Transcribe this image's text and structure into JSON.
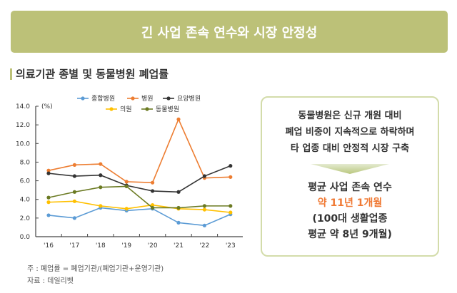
{
  "banner": {
    "title": "긴 사업 존속 연수와 시장 안정성"
  },
  "section": {
    "title": "의료기관 종별 및 동물병원 폐업률"
  },
  "chart_data": {
    "type": "line",
    "ylabel": "(%)",
    "categories": [
      "'16",
      "'17",
      "'18",
      "'19",
      "'20",
      "'21",
      "'22",
      "'23"
    ],
    "ylim": [
      0,
      14
    ],
    "yticks": [
      "0.0",
      "2.0",
      "4.0",
      "6.0",
      "8.0",
      "10.0",
      "12.0",
      "14.0"
    ],
    "legend_position": "top",
    "grid": false,
    "series": [
      {
        "name": "종합병원",
        "color": "#5b9bd5",
        "values": [
          2.3,
          2.0,
          3.1,
          2.8,
          3.0,
          1.5,
          1.2,
          2.4
        ]
      },
      {
        "name": "병원",
        "color": "#ed7d31",
        "values": [
          7.1,
          7.7,
          7.8,
          5.9,
          5.8,
          12.6,
          6.3,
          6.4
        ]
      },
      {
        "name": "요양병원",
        "color": "#333333",
        "values": [
          6.8,
          6.5,
          6.6,
          5.5,
          4.9,
          4.8,
          6.5,
          7.6
        ]
      },
      {
        "name": "의원",
        "color": "#ffc000",
        "values": [
          3.7,
          3.8,
          3.3,
          3.0,
          3.4,
          3.0,
          2.9,
          2.6
        ]
      },
      {
        "name": "동물병원",
        "color": "#6b7a22",
        "values": [
          4.2,
          4.8,
          5.3,
          5.4,
          3.1,
          3.1,
          3.3,
          3.3
        ]
      }
    ]
  },
  "box": {
    "lines": [
      "동물병원은 신규 개원 대비",
      "폐업 비중이 지속적으로 하락하며",
      "타 업종 대비 안정적 시장 구축"
    ],
    "headline": "평균 사업 존속 연수",
    "highlight": "약 11년 1개월",
    "compare1": "(100대 생활업종",
    "compare2": "평균 약 8년 9개월)"
  },
  "notes": {
    "formula": "주 : 폐업률 = 폐업기관/(폐업기관+운영기관)",
    "source": "자료 : 데일리벳"
  }
}
